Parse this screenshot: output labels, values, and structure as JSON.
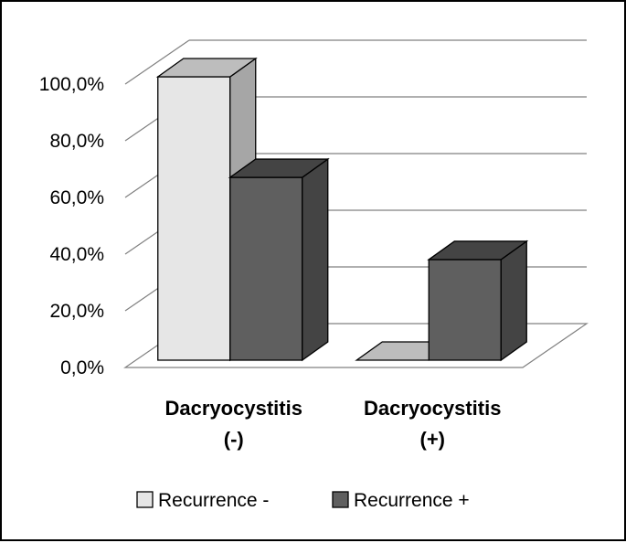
{
  "chart_data": {
    "type": "bar",
    "title": "",
    "xlabel": "",
    "ylabel": "",
    "categories": [
      [
        "Dacryocystitis",
        "(-)"
      ],
      [
        "Dacryocystitis",
        "(+)"
      ]
    ],
    "series": [
      {
        "name": "Recurrence -",
        "values": [
          100.0,
          0.0
        ],
        "color": "#e6e6e6"
      },
      {
        "name": "Recurrence +",
        "values": [
          64.5,
          35.5
        ],
        "color": "#5f5f5f"
      }
    ],
    "ylim": [
      0,
      100
    ],
    "yticks": [
      "0,0%",
      "20,0%",
      "40,0%",
      "60,0%",
      "80,0%",
      "100,0%"
    ],
    "grid": true,
    "legend_position": "bottom",
    "style": "3d-clustered-column"
  }
}
